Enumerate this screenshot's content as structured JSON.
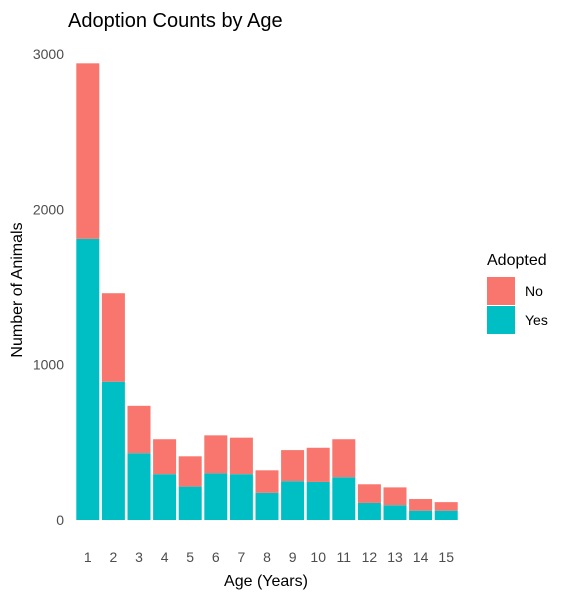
{
  "chart_data": {
    "type": "bar",
    "stacked": true,
    "title": "Adoption Counts by Age",
    "xlabel": "Age (Years)",
    "ylabel": "Number of Animals",
    "categories": [
      "1",
      "2",
      "3",
      "4",
      "5",
      "6",
      "7",
      "8",
      "9",
      "10",
      "11",
      "12",
      "13",
      "14",
      "15"
    ],
    "series": [
      {
        "name": "Yes",
        "color": "#00BFC4",
        "values": [
          1810,
          890,
          430,
          295,
          215,
          300,
          295,
          175,
          250,
          245,
          275,
          110,
          95,
          60,
          60
        ]
      },
      {
        "name": "No",
        "color": "#F8766D",
        "values": [
          1130,
          570,
          305,
          225,
          195,
          245,
          235,
          145,
          200,
          220,
          245,
          120,
          115,
          75,
          55
        ]
      }
    ],
    "yticks": [
      0,
      1000,
      2000,
      3000
    ],
    "ylim": [
      0,
      3000
    ],
    "grid": false,
    "legend": {
      "title": "Adopted",
      "placement": "right",
      "entries": [
        {
          "label": "No",
          "color": "#F8766D"
        },
        {
          "label": "Yes",
          "color": "#00BFC4"
        }
      ]
    }
  }
}
